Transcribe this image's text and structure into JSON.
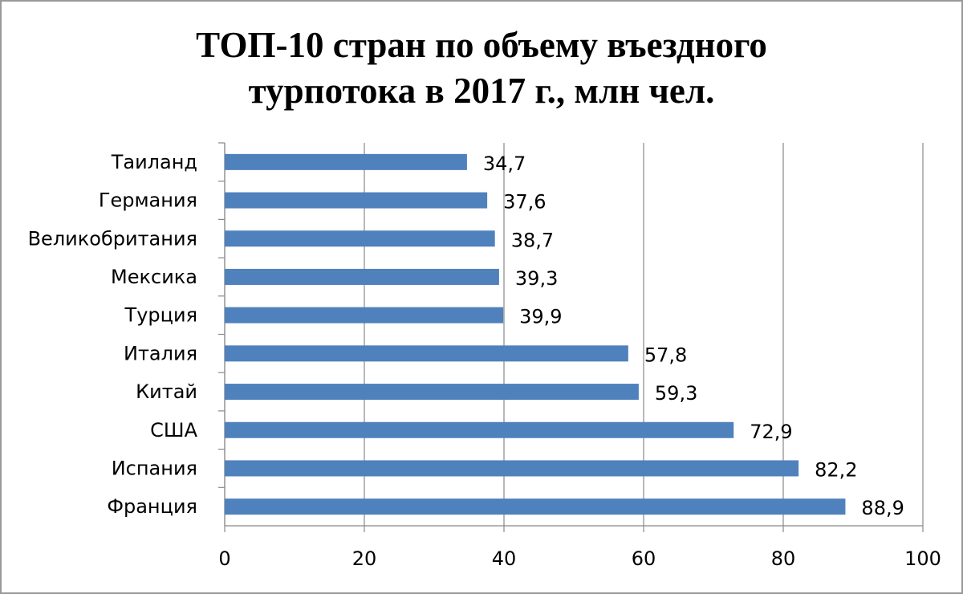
{
  "chart_data": {
    "type": "bar",
    "orientation": "horizontal",
    "title": "ТОП-10 стран по объему въездного турпотока в 2017 г., млн чел.",
    "categories": [
      "Таиланд",
      "Германия",
      "Великобритания",
      "Мексика",
      "Турция",
      "Италия",
      "Китай",
      "США",
      "Испания",
      "Франция"
    ],
    "values": [
      34.7,
      37.6,
      38.7,
      39.3,
      39.9,
      57.8,
      59.3,
      72.9,
      82.2,
      88.9
    ],
    "value_labels": [
      "34,7",
      "37,6",
      "38,7",
      "39,3",
      "39,9",
      "57,8",
      "59,3",
      "72,9",
      "82,2",
      "88,9"
    ],
    "color": "#4f81bd",
    "xlim": [
      0,
      100
    ],
    "xticks": [
      0,
      20,
      40,
      60,
      80,
      100
    ],
    "grid": true
  }
}
